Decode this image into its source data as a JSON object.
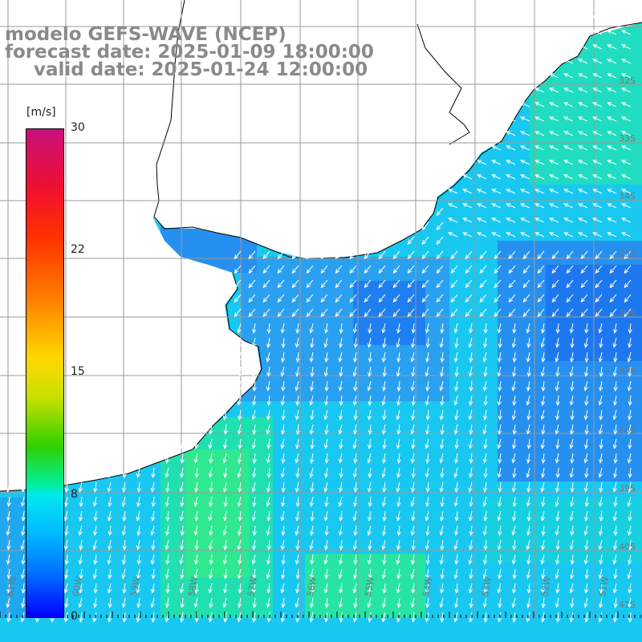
{
  "title": {
    "line1": "modelo GEFS-WAVE (NCEP)",
    "line2": "forecast date: 2025-01-09 18:00:00",
    "line3": "valid date: 2025-01-24 12:00:00"
  },
  "colorbar": {
    "unit": "[m/s]",
    "ticks": [
      "30",
      "22",
      "15",
      "8",
      "0"
    ],
    "stops": [
      "#c8107a",
      "#f01030",
      "#ff3000",
      "#ff8000",
      "#ffd800",
      "#30d000",
      "#00f0a0",
      "#00e8f0",
      "#00b8ff",
      "#0070ff",
      "#0000ff"
    ]
  },
  "axes": {
    "lat_labels": [
      "32S",
      "33S",
      "34S",
      "35S",
      "36S",
      "37S",
      "38S",
      "39S",
      "40S",
      "41S"
    ],
    "lon_labels": [
      "61W",
      "60W",
      "59W",
      "58W",
      "57W",
      "56W",
      "55W",
      "54W",
      "53W",
      "52W",
      "51W"
    ],
    "grid": true
  },
  "colors": {
    "land": "#ffffff",
    "coastline": "#000000",
    "grid": "#9a9a9a",
    "arrows": "#ffffff",
    "title_text": "#8a8a8a"
  }
}
